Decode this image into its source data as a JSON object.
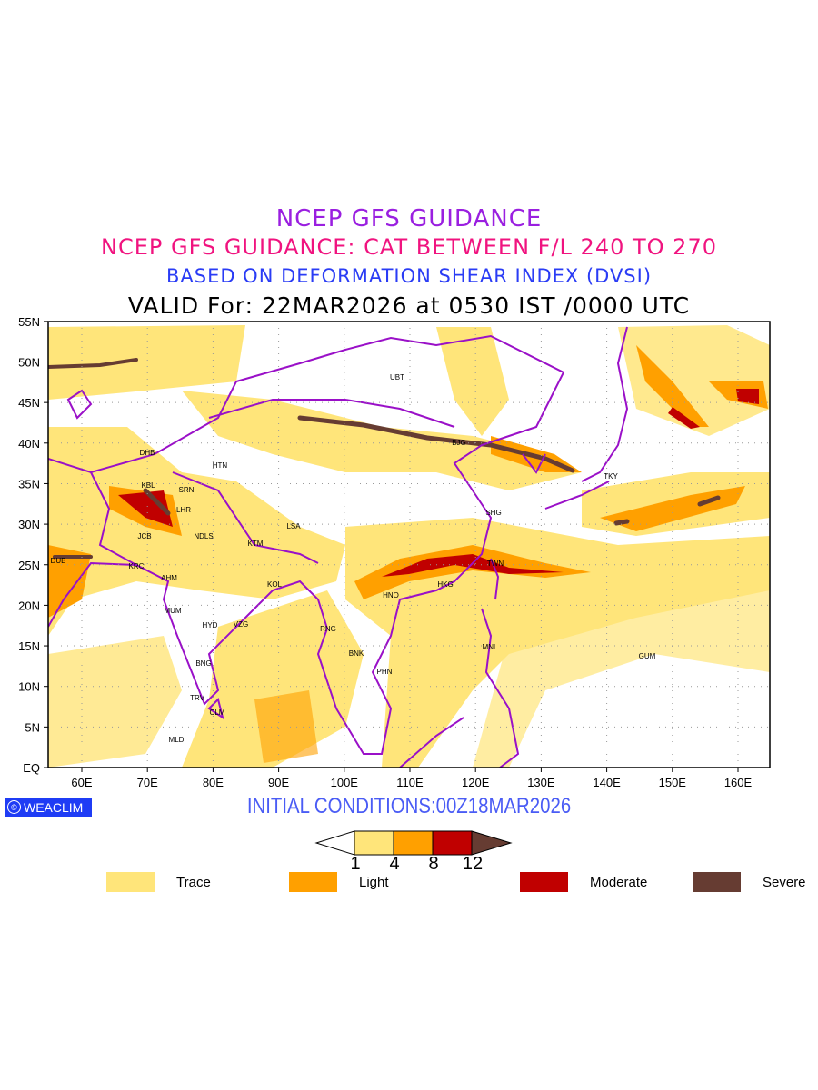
{
  "titles": {
    "line1": "NCEP GFS GUIDANCE",
    "line2": "NCEP GFS GUIDANCE: CAT BETWEEN F/L 240 TO 270",
    "line3": "BASED ON DEFORMATION SHEAR INDEX (DVSI)",
    "line4": "VALID For: 22MAR2026 at 0530 IST /0000 UTC"
  },
  "axes": {
    "lat_labels": [
      "EQ",
      "5N",
      "10N",
      "15N",
      "20N",
      "25N",
      "30N",
      "35N",
      "40N",
      "45N",
      "50N",
      "55N"
    ],
    "lon_labels": [
      "60E",
      "70E",
      "80E",
      "90E",
      "100E",
      "110E",
      "120E",
      "130E",
      "140E",
      "150E",
      "160E"
    ]
  },
  "cities": [
    "UBT",
    "BJG",
    "SHG",
    "TWN",
    "HKG",
    "HNO",
    "BNK",
    "PHN",
    "MNL",
    "TKY",
    "GUM",
    "DHB",
    "HTN",
    "KBL",
    "SRN",
    "LHR",
    "JCB",
    "NDLS",
    "KTM",
    "LSA",
    "DUB",
    "KRC",
    "AHM",
    "KOL",
    "MUM",
    "HYD",
    "VZG",
    "RNG",
    "BNG",
    "TRV",
    "CLM",
    "MLD"
  ],
  "logo": {
    "symbol": "©",
    "text": "WEACLIM"
  },
  "initial_conditions": "INITIAL CONDITIONS:00Z18MAR2026",
  "colorbar": {
    "ticks": [
      "1",
      "4",
      "8",
      "12"
    ]
  },
  "legend": [
    {
      "label": "Trace",
      "color": "#ffe57a"
    },
    {
      "label": "Light",
      "color": "#ffa000"
    },
    {
      "label": "Moderate",
      "color": "#c00000"
    },
    {
      "label": "Severe",
      "color": "#663c32"
    }
  ],
  "colors": {
    "coast": "#9a10c8",
    "trace": "#ffe57a",
    "light": "#ffa000",
    "moderate": "#c00000",
    "severe": "#663c32"
  }
}
